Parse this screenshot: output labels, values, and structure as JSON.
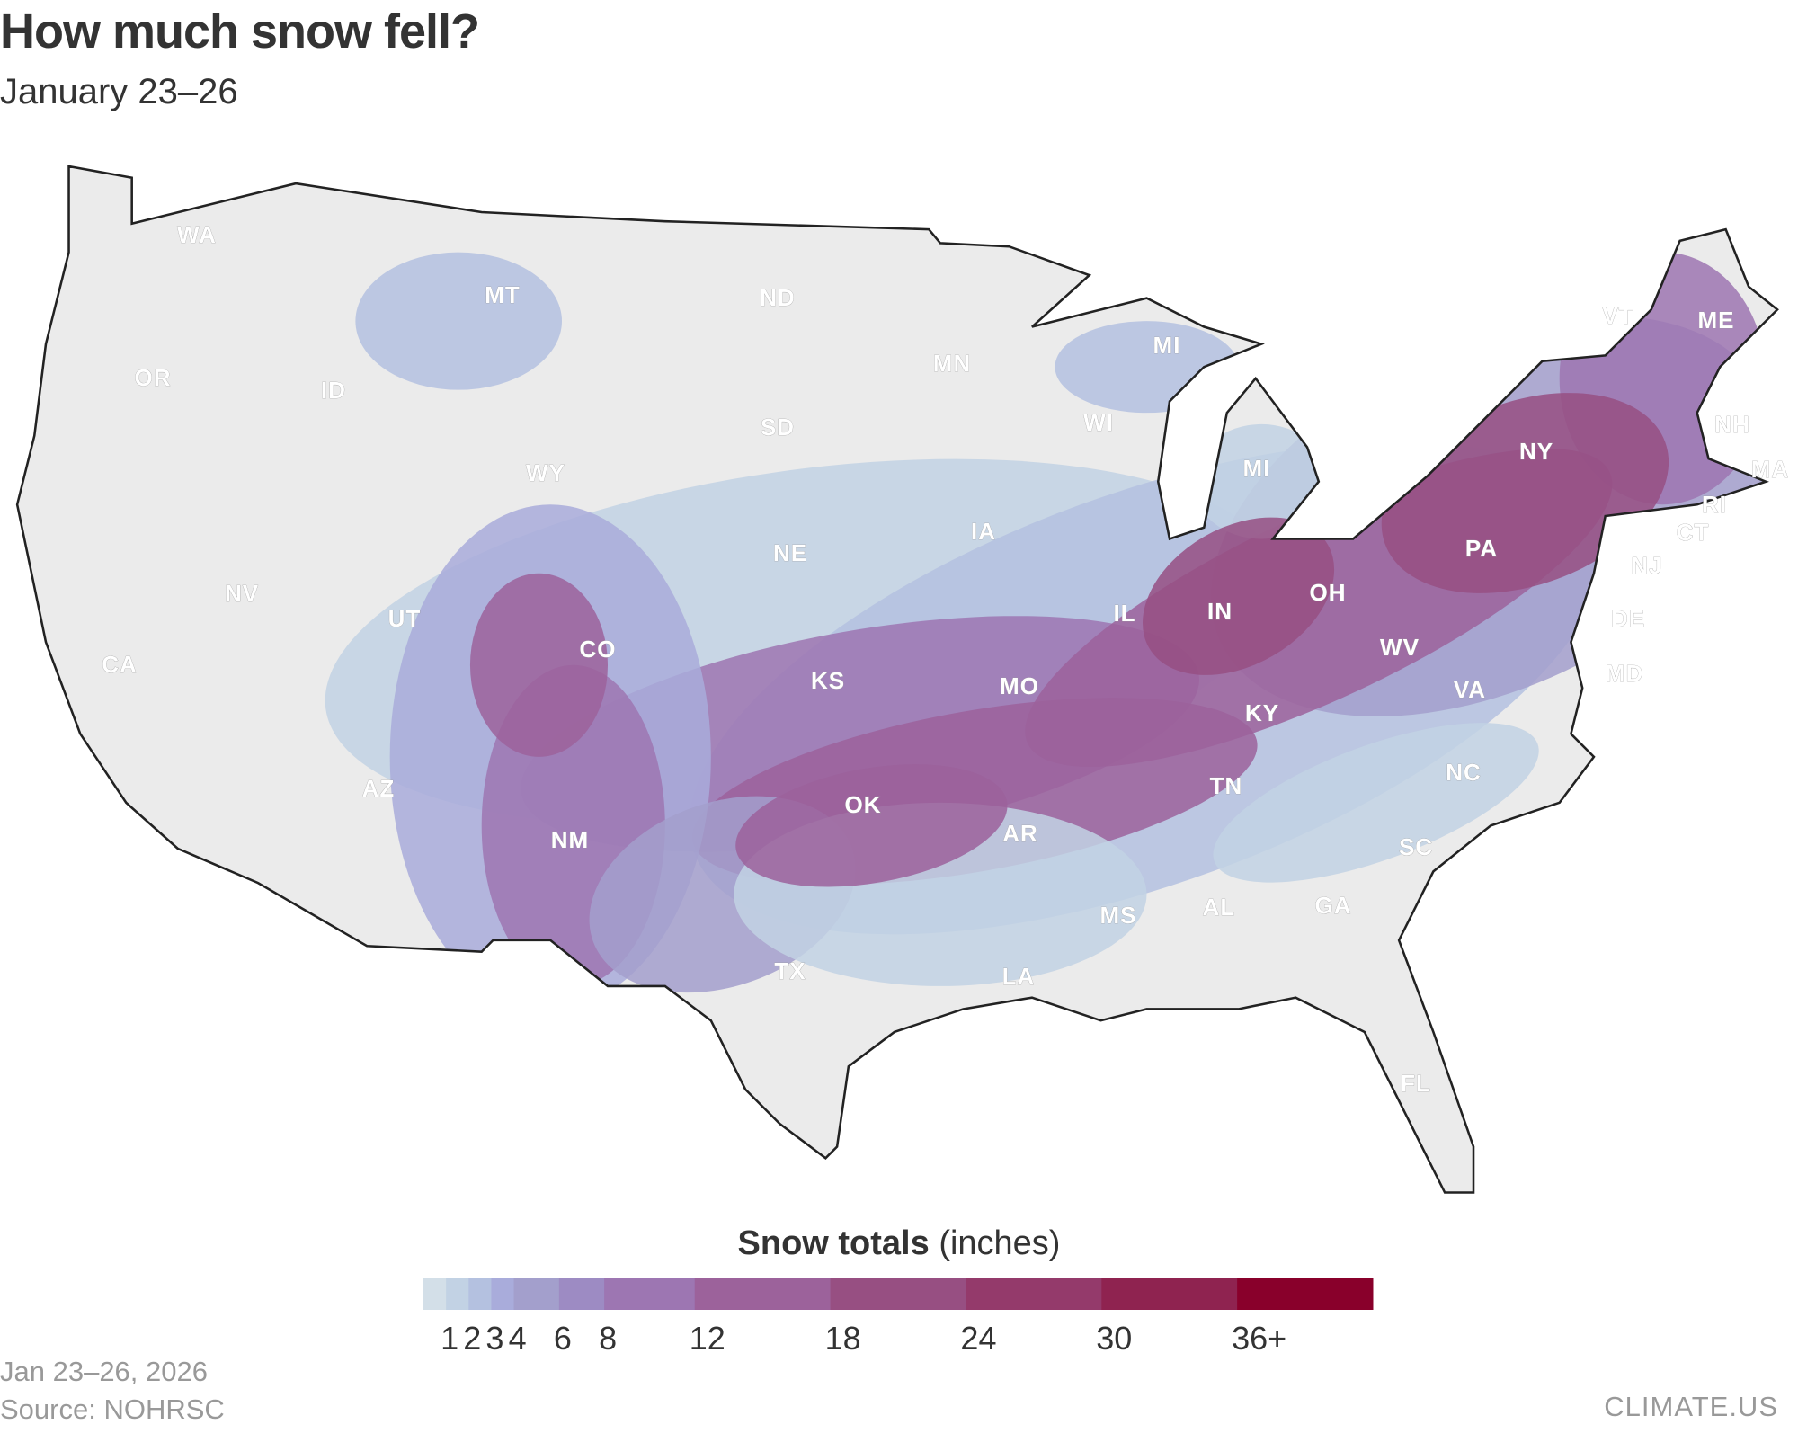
{
  "title": "How much snow fell?",
  "subtitle": "January 23–26",
  "legend": {
    "title_bold": "Snow totals",
    "title_unit": "(inches)",
    "bins": [
      {
        "from": 0,
        "to": 1,
        "color": "#d3dfe8"
      },
      {
        "from": 1,
        "to": 2,
        "color": "#c2d2e4"
      },
      {
        "from": 2,
        "to": 3,
        "color": "#b4c1e0"
      },
      {
        "from": 3,
        "to": 4,
        "color": "#a9acdb"
      },
      {
        "from": 4,
        "to": 6,
        "color": "#a39fcc"
      },
      {
        "from": 6,
        "to": 8,
        "color": "#9d8bc3"
      },
      {
        "from": 8,
        "to": 12,
        "color": "#9d76b2"
      },
      {
        "from": 12,
        "to": 18,
        "color": "#9c629b"
      },
      {
        "from": 18,
        "to": 24,
        "color": "#974f82"
      },
      {
        "from": 24,
        "to": 30,
        "color": "#943a6b"
      },
      {
        "from": 30,
        "to": 36,
        "color": "#8f2350"
      },
      {
        "from": 36,
        "to": 42,
        "color": "#89002b"
      }
    ],
    "ticks": [
      {
        "value": 1,
        "label": "1"
      },
      {
        "value": 2,
        "label": "2"
      },
      {
        "value": 3,
        "label": "3"
      },
      {
        "value": 4,
        "label": "4"
      },
      {
        "value": 6,
        "label": "6"
      },
      {
        "value": 8,
        "label": "8"
      },
      {
        "value": 12,
        "label": "12"
      },
      {
        "value": 18,
        "label": "18"
      },
      {
        "value": 24,
        "label": "24"
      },
      {
        "value": 30,
        "label": "30"
      },
      {
        "value": 36,
        "label": "36+"
      }
    ]
  },
  "states": [
    "WA",
    "MT",
    "ND",
    "OR",
    "ID",
    "MN",
    "MI",
    "VT",
    "ME",
    "NH",
    "MA",
    "SD",
    "WI",
    "WY",
    "MI",
    "NY",
    "RI",
    "CT",
    "IA",
    "NE",
    "PA",
    "NJ",
    "NV",
    "UT",
    "IL",
    "IN",
    "OH",
    "DE",
    "CO",
    "WV",
    "CA",
    "KS",
    "MO",
    "MD",
    "VA",
    "KY",
    "NC",
    "TN",
    "OK",
    "AZ",
    "AR",
    "NM",
    "SC",
    "MS",
    "AL",
    "GA",
    "TX",
    "LA",
    "FL"
  ],
  "colors": {
    "land": "#ebebeb",
    "border": "#ffffff",
    "coast": "#222222"
  },
  "footer": {
    "date": "Jan 23–26, 2026",
    "source": "Source: NOHRSC",
    "brand": "CLIMATE.US"
  }
}
